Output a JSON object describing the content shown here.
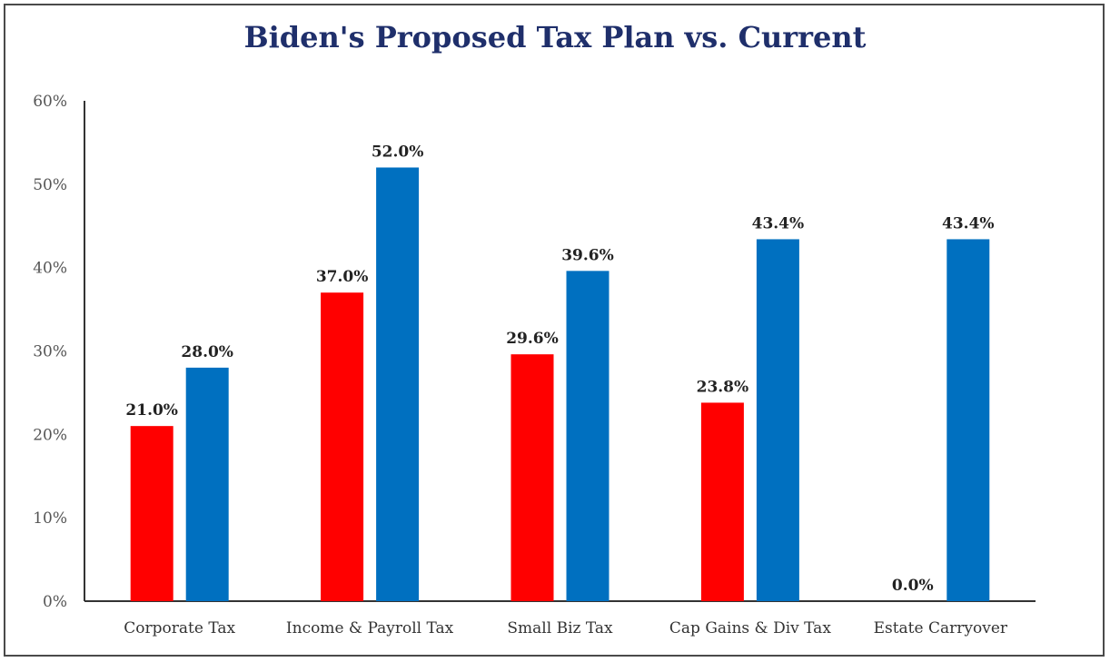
{
  "chart_data": {
    "type": "bar",
    "title": "Biden's Proposed Tax Plan vs. Current",
    "xlabel": "",
    "ylabel": "",
    "ylim": [
      0,
      60
    ],
    "yticks": [
      "0%",
      "10%",
      "20%",
      "30%",
      "40%",
      "50%",
      "60%"
    ],
    "categories": [
      "Corporate Tax",
      "Income & Payroll Tax",
      "Small Biz Tax",
      "Cap Gains & Div Tax",
      "Estate Carryover"
    ],
    "series": [
      {
        "color": "#ff0000",
        "values": [
          21.0,
          37.0,
          29.6,
          23.8,
          0.0
        ],
        "labels": [
          "21.0%",
          "37.0%",
          "29.6%",
          "23.8%",
          "0.0%"
        ]
      },
      {
        "color": "#0070c0",
        "values": [
          28.0,
          52.0,
          39.6,
          43.4,
          43.4
        ],
        "labels": [
          "28.0%",
          "52.0%",
          "39.6%",
          "43.4%",
          "43.4%"
        ]
      }
    ],
    "grid": false,
    "legend": "none"
  }
}
